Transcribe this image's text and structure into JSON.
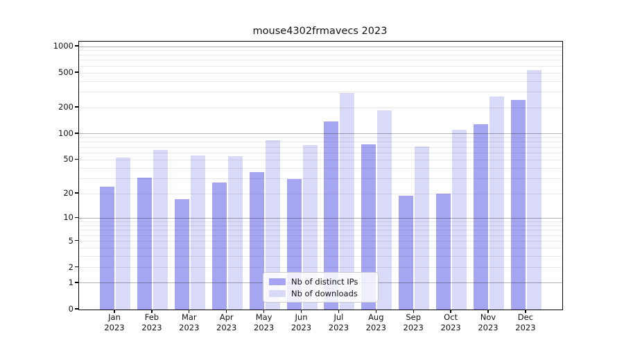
{
  "title": "mouse4302frmavecs 2023",
  "chart_data": {
    "type": "bar",
    "title": "mouse4302frmavecs 2023",
    "categories": [
      "Jan",
      "Feb",
      "Mar",
      "Apr",
      "May",
      "Jun",
      "Jul",
      "Aug",
      "Sep",
      "Oct",
      "Nov",
      "Dec"
    ],
    "year_label": "2023",
    "series": [
      {
        "name": "Nb of distinct IPs",
        "color": "#a5a5f2",
        "values": [
          24,
          31,
          17,
          27,
          36,
          30,
          140,
          75,
          19,
          20,
          130,
          245
        ]
      },
      {
        "name": "Nb of downloads",
        "color": "#d9d9f8",
        "values": [
          53,
          65,
          56,
          55,
          85,
          74,
          296,
          185,
          72,
          112,
          270,
          540
        ]
      }
    ],
    "xlabel": "",
    "ylabel": "",
    "y_scale": "log10(1+x)",
    "ylim": [
      0,
      1130
    ],
    "y_ticks": [
      0,
      1,
      2,
      5,
      10,
      20,
      50,
      100,
      200,
      500,
      1000
    ],
    "y_major_gridlines": [
      1,
      10,
      100,
      1000
    ],
    "y_minor_gridlines": [
      2,
      3,
      4,
      5,
      6,
      7,
      8,
      9,
      20,
      30,
      40,
      50,
      60,
      70,
      80,
      90,
      200,
      300,
      400,
      500,
      600,
      700,
      800,
      900
    ],
    "grid": true,
    "legend_position": "lower center",
    "legend_entries": [
      "Nb of distinct IPs",
      "Nb of downloads"
    ]
  },
  "legend": {
    "items": [
      {
        "label": "Nb of distinct IPs"
      },
      {
        "label": "Nb of downloads"
      }
    ]
  }
}
